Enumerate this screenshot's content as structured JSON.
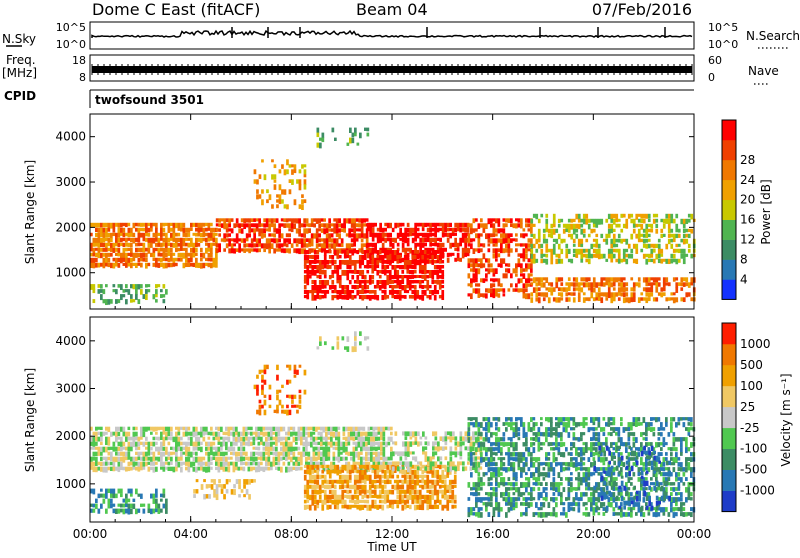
{
  "header": {
    "station": "Dome C East (fitACF)",
    "beam": "Beam 04",
    "date": "07/Feb/2016"
  },
  "top_panels": {
    "nsky_label": "N.Sky",
    "nsky_ticks": [
      "10^5",
      "10^0"
    ],
    "nsearch_label": "N.Search",
    "nsearch_ticks": [
      "10^5",
      "10^0"
    ],
    "freq_label": "Freq.",
    "freq_unit": "[MHz]",
    "freq_ticks": [
      "18",
      "8"
    ],
    "nave_label": "Nave",
    "nave_ticks": [
      "60",
      "0"
    ],
    "cpid_label": "CPID",
    "cpid_value": "twofsound 3501"
  },
  "chart_data": [
    {
      "type": "heatmap",
      "name": "power",
      "ylabel": "Slant Range [km]",
      "xlabel": "Time UT",
      "yticks": [
        "1000",
        "2000",
        "3000",
        "4000"
      ],
      "ytick_values": [
        1000,
        2000,
        3000,
        4000
      ],
      "ylim": [
        200,
        4500
      ],
      "xticks": [
        "00:00",
        "04:00",
        "08:00",
        "12:00",
        "16:00",
        "20:00",
        "00:00"
      ],
      "xtick_hours": [
        0,
        4,
        8,
        12,
        16,
        20,
        24
      ],
      "xlim_hours": [
        0,
        24
      ],
      "colorbar": {
        "label": "Power [dB]",
        "ticks": [
          "4",
          "8",
          "12",
          "16",
          "20",
          "24",
          "28"
        ],
        "colors": [
          "#1432ff",
          "#2878b4",
          "#3c8c64",
          "#50b450",
          "#c8c800",
          "#f0a000",
          "#f07800",
          "#f04000",
          "#ff0000"
        ]
      },
      "regions": [
        {
          "t0": 0.0,
          "t1": 5.0,
          "r0": 1200,
          "r1": 2100,
          "level": 6,
          "density": 0.85
        },
        {
          "t0": 5.0,
          "t1": 11.0,
          "r0": 1500,
          "r1": 2200,
          "level": 7,
          "density": 0.8
        },
        {
          "t0": 11.0,
          "t1": 15.0,
          "r0": 1300,
          "r1": 2100,
          "level": 8,
          "density": 0.75
        },
        {
          "t0": 8.5,
          "t1": 14.0,
          "r0": 500,
          "r1": 1500,
          "level": 8,
          "density": 0.8
        },
        {
          "t0": 15.0,
          "t1": 17.5,
          "r0": 500,
          "r1": 2200,
          "level": 7,
          "density": 0.6
        },
        {
          "t0": 17.5,
          "t1": 24.0,
          "r0": 1200,
          "r1": 2300,
          "level": 4,
          "density": 0.55
        },
        {
          "t0": 17.5,
          "t1": 24.0,
          "r0": 350,
          "r1": 900,
          "level": 6,
          "density": 0.7
        },
        {
          "t0": 0.0,
          "t1": 3.0,
          "r0": 400,
          "r1": 750,
          "level": 3,
          "density": 0.5
        },
        {
          "t0": 6.5,
          "t1": 8.5,
          "r0": 2500,
          "r1": 3500,
          "level": 5,
          "density": 0.3
        },
        {
          "t0": 9.0,
          "t1": 11.0,
          "r0": 3800,
          "r1": 4200,
          "level": 3,
          "density": 0.25
        }
      ]
    },
    {
      "type": "heatmap",
      "name": "velocity",
      "ylabel": "Slant Range [km]",
      "xlabel": "Time UT",
      "yticks": [
        "1000",
        "2000",
        "3000",
        "4000"
      ],
      "ytick_values": [
        1000,
        2000,
        3000,
        4000
      ],
      "ylim": [
        200,
        4500
      ],
      "xticks": [
        "00:00",
        "04:00",
        "08:00",
        "12:00",
        "16:00",
        "20:00",
        "00:00"
      ],
      "xtick_hours": [
        0,
        4,
        8,
        12,
        16,
        20,
        24
      ],
      "xlim_hours": [
        0,
        24
      ],
      "colorbar": {
        "label": "Velocity [m s⁻¹]",
        "ticks": [
          "1000",
          "500",
          "100",
          "25",
          "-25",
          "-100",
          "-500",
          "-1000"
        ],
        "colors": [
          "#1e3cc8",
          "#2878b4",
          "#3c8c64",
          "#50c850",
          "#c8c8c8",
          "#f0c864",
          "#f0a000",
          "#f07800",
          "#ff1e00"
        ]
      },
      "regions": [
        {
          "t0": 0.0,
          "t1": 12.0,
          "r0": 1300,
          "r1": 2200,
          "level": 4,
          "density": 0.85
        },
        {
          "t0": 0.0,
          "t1": 3.0,
          "r0": 400,
          "r1": 900,
          "level": 2,
          "density": 0.5
        },
        {
          "t0": 8.5,
          "t1": 14.5,
          "r0": 500,
          "r1": 1400,
          "level": 6,
          "density": 0.85
        },
        {
          "t0": 12.0,
          "t1": 15.5,
          "r0": 1300,
          "r1": 2100,
          "level": 4,
          "density": 0.6
        },
        {
          "t0": 15.0,
          "t1": 24.0,
          "r0": 400,
          "r1": 2400,
          "level": 2,
          "density": 0.6
        },
        {
          "t0": 20.0,
          "t1": 23.0,
          "r0": 500,
          "r1": 1800,
          "level": 1,
          "density": 0.3
        },
        {
          "t0": 4.0,
          "t1": 6.5,
          "r0": 700,
          "r1": 1100,
          "level": 5,
          "density": 0.4
        },
        {
          "t0": 6.5,
          "t1": 8.5,
          "r0": 2500,
          "r1": 3500,
          "level": 7,
          "density": 0.3
        },
        {
          "t0": 9.0,
          "t1": 11.0,
          "r0": 3800,
          "r1": 4200,
          "level": 4,
          "density": 0.25
        }
      ]
    }
  ]
}
